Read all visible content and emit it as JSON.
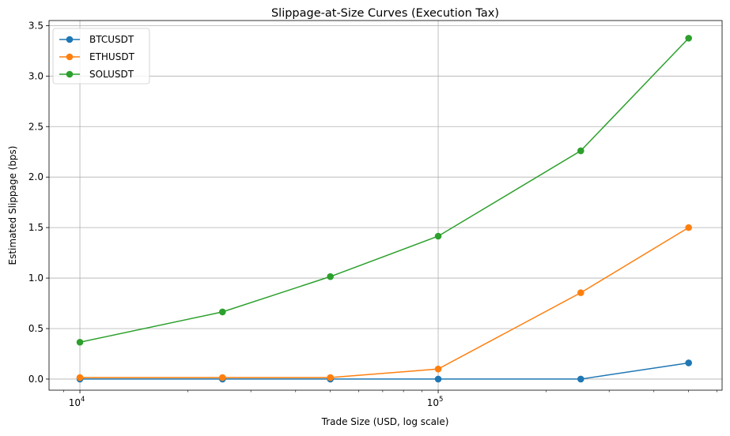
{
  "chart_data": {
    "type": "line",
    "title": "Slippage-at-Size Curves (Execution Tax)",
    "xlabel": "Trade Size (USD, log scale)",
    "ylabel": "Estimated Slippage (bps)",
    "xscale": "log",
    "xlim": [
      8200,
      620000
    ],
    "ylim": [
      -0.11,
      3.55
    ],
    "grid": true,
    "legend_position": "upper-left",
    "x": [
      10000,
      25000,
      50000,
      100000,
      250000,
      500000
    ],
    "x_ticks": [
      {
        "value": 10000,
        "base": "10",
        "exp": "4"
      },
      {
        "value": 100000,
        "base": "10",
        "exp": "5"
      }
    ],
    "y_ticks": [
      {
        "value": 0.0,
        "label": "0.0"
      },
      {
        "value": 0.5,
        "label": "0.5"
      },
      {
        "value": 1.0,
        "label": "1.0"
      },
      {
        "value": 1.5,
        "label": "1.5"
      },
      {
        "value": 2.0,
        "label": "2.0"
      },
      {
        "value": 2.5,
        "label": "2.5"
      },
      {
        "value": 3.0,
        "label": "3.0"
      },
      {
        "value": 3.5,
        "label": "3.5"
      }
    ],
    "series": [
      {
        "name": "BTCUSDT",
        "color": "#1f77b4",
        "values": [
          0.0,
          0.0,
          0.0,
          0.0,
          0.0,
          0.16
        ]
      },
      {
        "name": "ETHUSDT",
        "color": "#ff7f0e",
        "values": [
          0.015,
          0.015,
          0.015,
          0.1,
          0.855,
          1.5
        ]
      },
      {
        "name": "SOLUSDT",
        "color": "#2ca02c",
        "values": [
          0.365,
          0.665,
          1.015,
          1.415,
          2.26,
          3.375
        ]
      }
    ]
  }
}
